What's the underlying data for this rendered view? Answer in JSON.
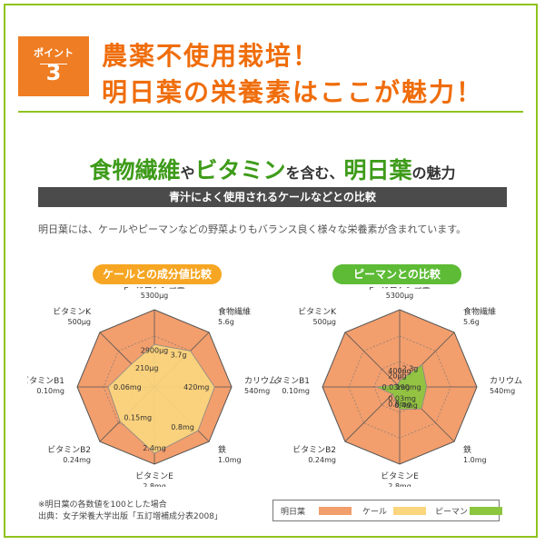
{
  "header": {
    "badge_label": "ポイント",
    "badge_number": "3",
    "headline_line1": "農薬不使用栽培！",
    "headline_line2": "明日葉の栄養素はここが魅力！"
  },
  "subtitle": {
    "part1": "食物繊維",
    "part2": "や",
    "part3": "ビタミン",
    "part4": "を含む、",
    "part5": "明日葉",
    "part6": "の魅力"
  },
  "bar_title": "青汁によく使用されるケールなどとの比較",
  "description": "明日葉には、ケールやピーマンなどの野菜よりもバランス良く様々な栄養素が含まれています。",
  "colors": {
    "ashitaba": "#f29e6d",
    "kale": "#fbd67e",
    "piman": "#8cc63f"
  },
  "charts": {
    "kale": {
      "title": "ケールとの成分値比較",
      "labels": [
        {
          "name": "β−カロチン当量",
          "value": "5300μg"
        },
        {
          "name": "食物繊維",
          "value": "5.6g"
        },
        {
          "name": "カリウム",
          "value": "540mg"
        },
        {
          "name": "鉄",
          "value": "1.0mg"
        },
        {
          "name": "ビタミンE",
          "value": "2.8mg"
        },
        {
          "name": "ビタミンB2",
          "value": "0.24mg"
        },
        {
          "name": "ビタミンB1",
          "value": "0.10mg"
        },
        {
          "name": "ビタミンK",
          "value": "500μg"
        }
      ],
      "comp_labels": [
        "2900μg",
        "3.7g",
        "420mg",
        "0.8mg",
        "2.4mg",
        "0.15mg",
        "0.06mg",
        "210μg"
      ]
    },
    "piman": {
      "title": "ピーマンとの比較",
      "labels": [
        {
          "name": "β−カロチン当量",
          "value": "5300μg"
        },
        {
          "name": "食物繊維",
          "value": "5.6g"
        },
        {
          "name": "カリウム",
          "value": "540mg"
        },
        {
          "name": "鉄",
          "value": "1.0mg"
        },
        {
          "name": "ビタミンE",
          "value": "2.8mg"
        },
        {
          "name": "ビタミンB2",
          "value": "0.24mg"
        },
        {
          "name": "ビタミンB1",
          "value": "0.10mg"
        },
        {
          "name": "ビタミンK",
          "value": "500μg"
        }
      ],
      "comp_labels": [
        "400μg",
        "2.3g",
        "190mg",
        "0.4mg",
        "0.8mg",
        "0.03mg",
        "0.03mg",
        "20μg"
      ]
    }
  },
  "chart_data": [
    {
      "type": "radar",
      "title": "ケールとの成分値比較",
      "categories": [
        "β−カロチン当量",
        "食物繊維",
        "カリウム",
        "鉄",
        "ビタミンE",
        "ビタミンB2",
        "ビタミンB1",
        "ビタミンK"
      ],
      "max": 100,
      "series": [
        {
          "name": "明日葉",
          "values": [
            100,
            100,
            100,
            100,
            100,
            100,
            100,
            100
          ]
        },
        {
          "name": "ケール",
          "values": [
            55,
            66,
            78,
            80,
            86,
            63,
            60,
            42
          ]
        }
      ]
    },
    {
      "type": "radar",
      "title": "ピーマンとの比較",
      "categories": [
        "β−カロチン当量",
        "食物繊維",
        "カリウム",
        "鉄",
        "ビタミンE",
        "ビタミンB2",
        "ビタミンB1",
        "ビタミンK"
      ],
      "max": 100,
      "series": [
        {
          "name": "明日葉",
          "values": [
            100,
            100,
            100,
            100,
            100,
            100,
            100,
            100
          ]
        },
        {
          "name": "ピーマン",
          "values": [
            8,
            41,
            35,
            40,
            29,
            13,
            30,
            4
          ]
        }
      ]
    }
  ],
  "footnote": {
    "line1": "※明日葉の各数値を100とした場合",
    "line2": "出典：女子栄養大学出版「五訂増補成分表2008」"
  },
  "legend": {
    "ashitaba": "明日葉",
    "kale": "ケール",
    "piman": "ピーマン"
  }
}
